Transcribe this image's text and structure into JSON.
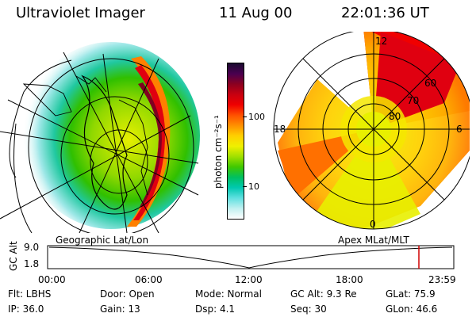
{
  "header": {
    "instrument": "Ultraviolet Imager",
    "date": "11 Aug 00",
    "time": "22:01:36 UT"
  },
  "left_panel": {
    "label": "Geographic Lat/Lon"
  },
  "right_panel": {
    "label": "Apex  MLat/MLT",
    "lat_labels": [
      "60",
      "70",
      "80"
    ],
    "mlt_labels": {
      "top": "12",
      "left": "18",
      "right": "6",
      "bottom": "0"
    }
  },
  "colorbar": {
    "unit_label": "photon cm⁻²s⁻¹",
    "ticks": [
      "100",
      "10"
    ],
    "colors": [
      "#1a0a30",
      "#4a0050",
      "#8b0020",
      "#c80010",
      "#f00000",
      "#ff5000",
      "#ff9000",
      "#ffd000",
      "#f0f000",
      "#a0e000",
      "#40c800",
      "#00c060",
      "#00c8b0",
      "#60e0e0",
      "#c0f0f0",
      "#ffffff"
    ]
  },
  "altitude_plot": {
    "axis_label": "GC Alt",
    "y_ticks": [
      "9.0",
      "1.8"
    ],
    "time_ticks": [
      "00:00",
      "06:00",
      "12:00",
      "18:00",
      "23:59"
    ],
    "marker_color": "#d00000"
  },
  "footer": {
    "row1": [
      {
        "name": "filter",
        "text": "Flt: LBHS"
      },
      {
        "name": "door",
        "text": "Door: Open"
      },
      {
        "name": "mode",
        "text": "Mode: Normal"
      },
      {
        "name": "gc-alt",
        "text": "GC Alt: 9.3 Re"
      },
      {
        "name": "glat",
        "text": "GLat:  75.9"
      }
    ],
    "row2": [
      {
        "name": "ip",
        "text": "IP: 36.0"
      },
      {
        "name": "gain",
        "text": "Gain: 13"
      },
      {
        "name": "dsp",
        "text": "Dsp:    4.1"
      },
      {
        "name": "seq",
        "text": "Seq: 30"
      },
      {
        "name": "glon",
        "text": "GLon:  46.6"
      }
    ]
  }
}
